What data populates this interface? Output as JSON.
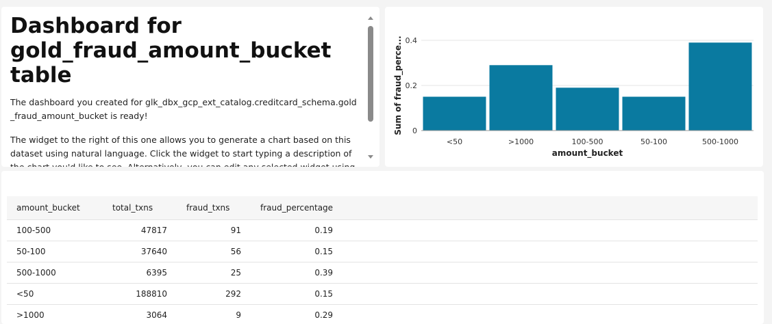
{
  "text_widget": {
    "title": "Dashboard for gold_fraud_amount_bucket table",
    "para1": "The dashboard you created for glk_dbx_gcp_ext_catalog.creditcard_schema.gold_fraud_amount_bucket is ready!",
    "para2": "The widget to the right of this one allows you to generate a chart based on this dataset using natural language. Click the widget to start typing a description of the chart you'd like to see. Alternatively, you can edit any selected widget using the controls in the right"
  },
  "colors": {
    "bar": "#0a7aa0",
    "background": "#f4f4f4",
    "card": "#ffffff"
  },
  "chart_data": {
    "type": "bar",
    "categories": [
      "<50",
      ">1000",
      "100-500",
      "50-100",
      "500-1000"
    ],
    "values": [
      0.15,
      0.29,
      0.19,
      0.15,
      0.39
    ],
    "xlabel": "amount_bucket",
    "ylabel": "Sum of fraud_perce...",
    "yticks": [
      "0",
      "0.2",
      "0.4"
    ],
    "ylim": [
      0,
      0.4
    ],
    "grid": true
  },
  "table": {
    "headers": [
      "amount_bucket",
      "total_txns",
      "fraud_txns",
      "fraud_percentage"
    ],
    "rows": [
      [
        "100-500",
        "47817",
        "91",
        "0.19"
      ],
      [
        "50-100",
        "37640",
        "56",
        "0.15"
      ],
      [
        "500-1000",
        "6395",
        "25",
        "0.39"
      ],
      [
        "<50",
        "188810",
        "292",
        "0.15"
      ],
      [
        ">1000",
        "3064",
        "9",
        "0.29"
      ]
    ]
  }
}
